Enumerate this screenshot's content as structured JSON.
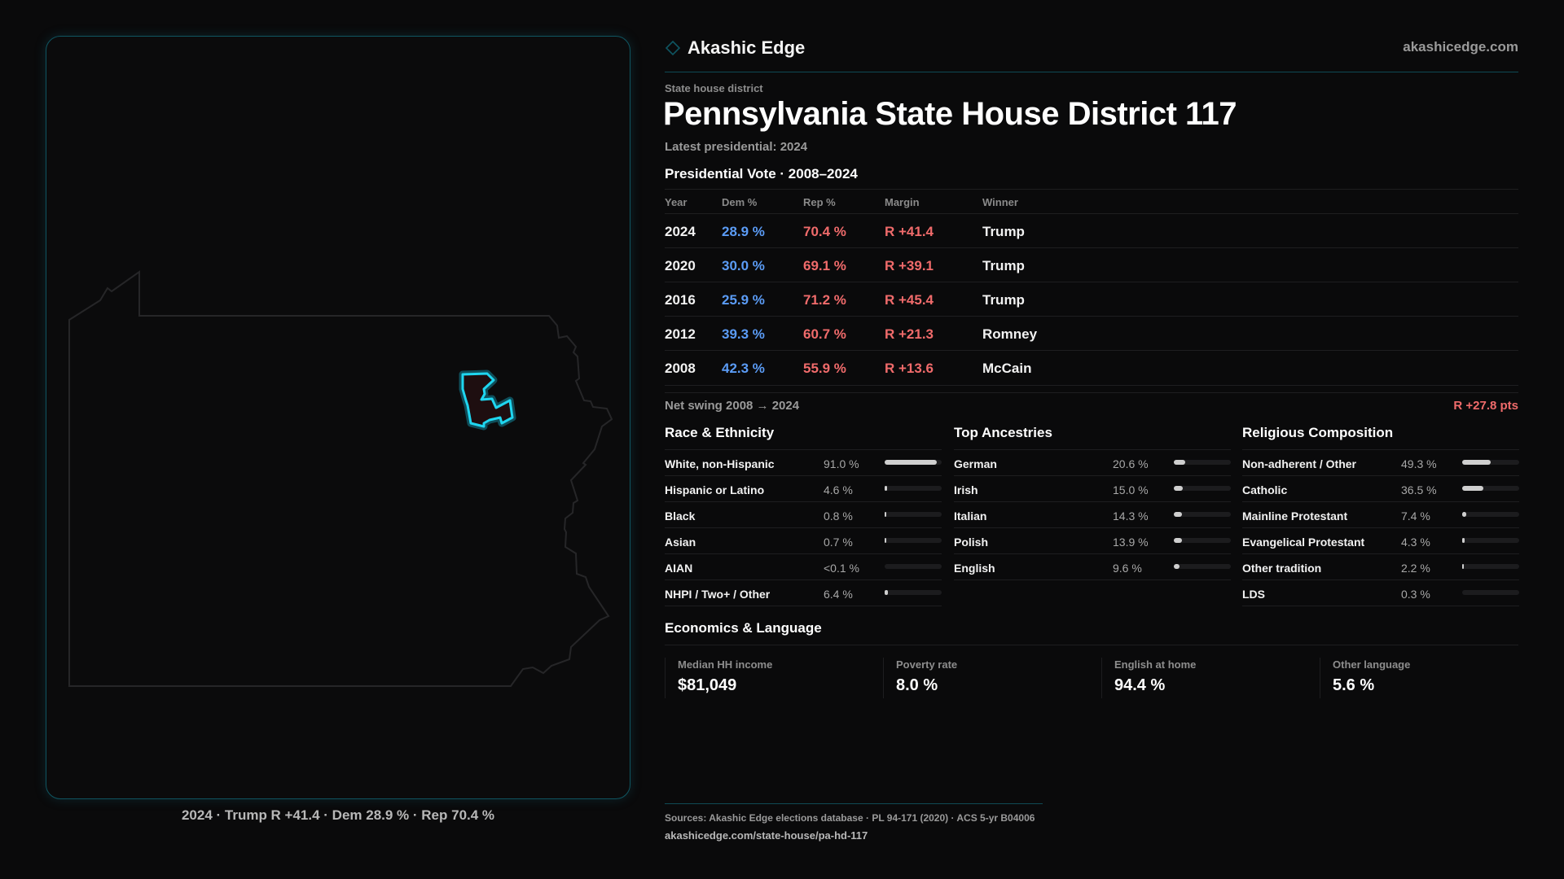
{
  "brand": {
    "name": "Akashic Edge",
    "site": "akashicedge.com",
    "accent": "#0f5561",
    "highlight": "#1fd6f0"
  },
  "map": {
    "caption": "2024 · Trump R +41.4 · Dem 28.9 % · Rep 70.4 %",
    "state": "Pennsylvania",
    "highlighted": "State House District 117"
  },
  "header": {
    "eyebrow": "State house district",
    "title": "Pennsylvania State House District 117",
    "latest": "Latest presidential: 2024"
  },
  "vote": {
    "title": "Presidential Vote · 2008–2024",
    "columns": [
      "Year",
      "Dem %",
      "Rep %",
      "Margin",
      "Winner"
    ],
    "rows": [
      [
        "2024",
        "28.9 %",
        "70.4 %",
        "R +41.4",
        "Trump"
      ],
      [
        "2020",
        "30.0 %",
        "69.1 %",
        "R +39.1",
        "Trump"
      ],
      [
        "2016",
        "25.9 %",
        "71.2 %",
        "R +45.4",
        "Trump"
      ],
      [
        "2012",
        "39.3 %",
        "60.7 %",
        "R +21.3",
        "Romney"
      ],
      [
        "2008",
        "42.3 %",
        "55.9 %",
        "R +13.6",
        "McCain"
      ]
    ],
    "colors": {
      "dem": "#5b9cf6",
      "rep": "#f06b6b"
    }
  },
  "swing": {
    "label": "Net swing 2008 → 2024",
    "value": "R +27.8 pts"
  },
  "sections": [
    {
      "title": "Race & Ethnicity",
      "rows": [
        {
          "label": "White, non-Hispanic",
          "value": "91.0 %",
          "pct": 91.0
        },
        {
          "label": "Hispanic or Latino",
          "value": "4.6 %",
          "pct": 4.6
        },
        {
          "label": "Black",
          "value": "0.8 %",
          "pct": 0.8
        },
        {
          "label": "Asian",
          "value": "0.7 %",
          "pct": 0.7
        },
        {
          "label": "AIAN",
          "value": "<0.1 %",
          "pct": 0.05
        },
        {
          "label": "NHPI / Two+ / Other",
          "value": "6.4 %",
          "pct": 6.4
        }
      ]
    },
    {
      "title": "Top Ancestries",
      "rows": [
        {
          "label": "German",
          "value": "20.6 %",
          "pct": 20.6
        },
        {
          "label": "Irish",
          "value": "15.0 %",
          "pct": 15.0
        },
        {
          "label": "Italian",
          "value": "14.3 %",
          "pct": 14.3
        },
        {
          "label": "Polish",
          "value": "13.9 %",
          "pct": 13.9
        },
        {
          "label": "English",
          "value": "9.6 %",
          "pct": 9.6
        }
      ]
    },
    {
      "title": "Religious Composition",
      "rows": [
        {
          "label": "Non-adherent / Other",
          "value": "49.3 %",
          "pct": 49.3
        },
        {
          "label": "Catholic",
          "value": "36.5 %",
          "pct": 36.5
        },
        {
          "label": "Mainline Protestant",
          "value": "7.4 %",
          "pct": 7.4
        },
        {
          "label": "Evangelical Protestant",
          "value": "4.3 %",
          "pct": 4.3
        },
        {
          "label": "Other tradition",
          "value": "2.2 %",
          "pct": 2.2
        },
        {
          "label": "LDS",
          "value": "0.3 %",
          "pct": 0.3
        }
      ]
    }
  ],
  "economics": {
    "title": "Economics & Language",
    "cards": [
      {
        "label": "Median HH income",
        "value": "$81,049"
      },
      {
        "label": "Poverty rate",
        "value": "8.0 %"
      },
      {
        "label": "English at home",
        "value": "94.4 %"
      },
      {
        "label": "Other language",
        "value": "5.6 %"
      }
    ]
  },
  "footer": {
    "sources": "Sources: Akashic Edge elections database · PL 94-171 (2020) · ACS 5-yr B04006",
    "url": "akashicedge.com/state-house/pa-hd-117"
  }
}
